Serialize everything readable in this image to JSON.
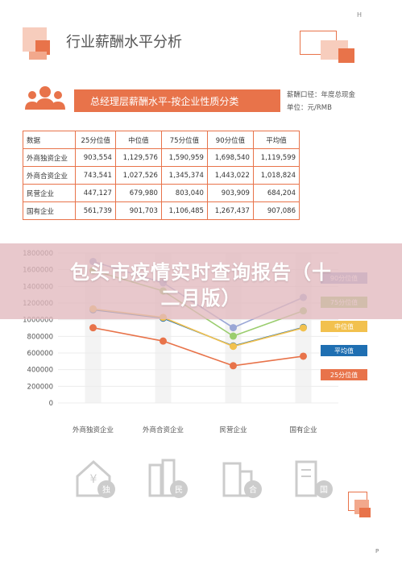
{
  "page": {
    "corner_label": "H",
    "page_marker": "P"
  },
  "header": {
    "title": "行业薪酬水平分析"
  },
  "banner": {
    "title": "总经理层薪酬水平-按企业性质分类",
    "salary_caliber": "薪酬口径：年度总现金",
    "unit": "单位：元/RMB"
  },
  "table": {
    "headers": [
      "数据",
      "25分位值",
      "中位值",
      "75分位值",
      "90分位值",
      "平均值"
    ],
    "rows": [
      [
        "外商独资企业",
        "903,554",
        "1,129,576",
        "1,590,959",
        "1,698,540",
        "1,119,599"
      ],
      [
        "外商合资企业",
        "743,541",
        "1,027,526",
        "1,345,374",
        "1,443,022",
        "1,018,824"
      ],
      [
        "民营企业",
        "447,127",
        "679,980",
        "803,040",
        "903,909",
        "684,204"
      ],
      [
        "国有企业",
        "561,739",
        "901,703",
        "1,106,485",
        "1,267,437",
        "907,086"
      ]
    ]
  },
  "overlay": {
    "line1": "包头市疫情实时查询报告（十",
    "line2": "二月版）"
  },
  "chart_data": {
    "type": "line",
    "categories": [
      "外商独资企业",
      "外商合资企业",
      "民营企业",
      "国有企业"
    ],
    "ylim": [
      0,
      1800000
    ],
    "yticks": [
      "0",
      "200000",
      "400000",
      "600000",
      "800000",
      "1000000",
      "1200000",
      "1400000",
      "1600000",
      "1800000"
    ],
    "series": [
      {
        "name": "25分位值",
        "color": "#e8734a",
        "values": [
          903554,
          743541,
          447127,
          561739
        ]
      },
      {
        "name": "平均值",
        "color": "#1f6fb2",
        "values": [
          1119599,
          1018824,
          684204,
          907086
        ]
      },
      {
        "name": "中位值",
        "color": "#f2c14e",
        "values": [
          1129576,
          1027526,
          679980,
          901703
        ]
      },
      {
        "name": "75分位值",
        "color": "#9acd6e",
        "values": [
          1590959,
          1345374,
          803040,
          1106485
        ]
      },
      {
        "name": "90分位值",
        "color": "#9aa7d6",
        "values": [
          1698540,
          1443022,
          903909,
          1267437
        ]
      }
    ],
    "legend": [
      "90分位值",
      "75分位值",
      "中位值",
      "平均值",
      "25分位值"
    ],
    "legend_position": "right"
  },
  "icons": {
    "company_types": [
      "独",
      "民",
      "合",
      "国"
    ]
  }
}
